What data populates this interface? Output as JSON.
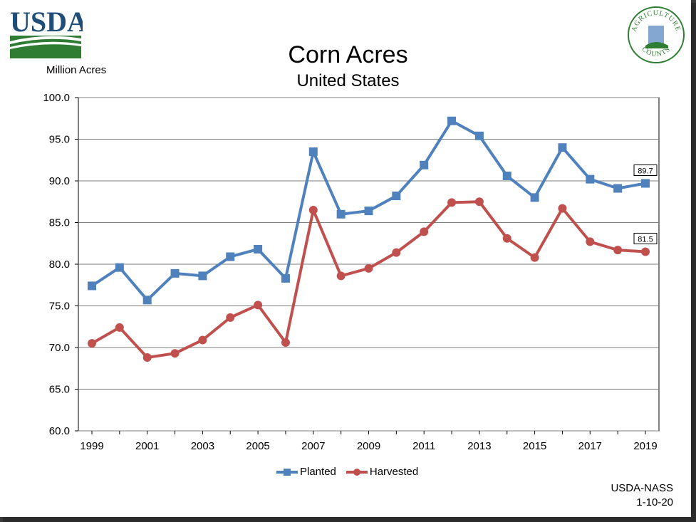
{
  "header": {
    "title": "Corn Acres",
    "subtitle": "United States",
    "logo_left_text": "USDA",
    "logo_right_text_top": "AGRICULTURE",
    "logo_right_text_bottom": "COUNTS"
  },
  "footer": {
    "source": "USDA-NASS",
    "date": "1-10-20"
  },
  "colors": {
    "planted": "#4f81bd",
    "harvested": "#c0504d",
    "usda_blue": "#1f4e79",
    "usda_green": "#2e7d32"
  },
  "chart_data": {
    "type": "line",
    "title": "Corn Acres",
    "subtitle": "United States",
    "ylabel": "Million Acres",
    "xlabel": "",
    "ylim": [
      60,
      100
    ],
    "y_ticks": [
      "60.0",
      "65.0",
      "70.0",
      "75.0",
      "80.0",
      "85.0",
      "90.0",
      "95.0",
      "100.0"
    ],
    "y_tick_values": [
      60,
      65,
      70,
      75,
      80,
      85,
      90,
      95,
      100
    ],
    "x": [
      1999,
      2000,
      2001,
      2002,
      2003,
      2004,
      2005,
      2006,
      2007,
      2008,
      2009,
      2010,
      2011,
      2012,
      2013,
      2014,
      2015,
      2016,
      2017,
      2018,
      2019
    ],
    "x_tick_labels": [
      "1999",
      "2001",
      "2003",
      "2005",
      "2007",
      "2009",
      "2011",
      "2013",
      "2015",
      "2017",
      "2019"
    ],
    "x_tick_values": [
      1999,
      2001,
      2003,
      2005,
      2007,
      2009,
      2011,
      2013,
      2015,
      2017,
      2019
    ],
    "grid": "horizontal",
    "legend_position": "bottom",
    "series": [
      {
        "name": "Planted",
        "marker": "square",
        "values": [
          77.4,
          79.6,
          75.7,
          78.9,
          78.6,
          80.9,
          81.8,
          78.3,
          93.5,
          86.0,
          86.4,
          88.2,
          91.9,
          97.2,
          95.4,
          90.6,
          88.0,
          94.0,
          90.2,
          89.1,
          89.7
        ],
        "end_label": "89.7"
      },
      {
        "name": "Harvested",
        "marker": "circle",
        "values": [
          70.5,
          72.4,
          68.8,
          69.3,
          70.9,
          73.6,
          75.1,
          70.6,
          86.5,
          78.6,
          79.5,
          81.4,
          83.9,
          87.4,
          87.5,
          83.1,
          80.8,
          86.7,
          82.7,
          81.7,
          81.5
        ],
        "end_label": "81.5"
      }
    ]
  }
}
